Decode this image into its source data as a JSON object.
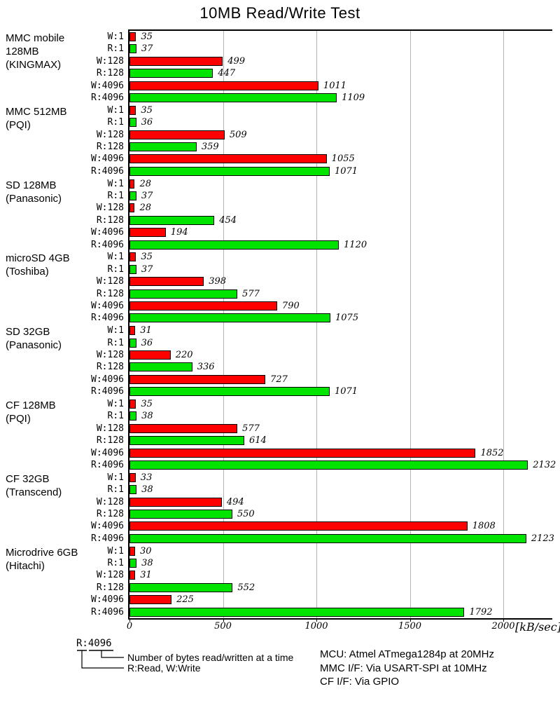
{
  "chart_data": {
    "type": "bar",
    "orientation": "horizontal",
    "title": "10MB Read/Write Test",
    "unit_label": "[kB/sec]",
    "x_ticks": [
      0,
      500,
      1000,
      1500,
      2000
    ],
    "xlim": [
      0,
      2262
    ],
    "grid": true,
    "bar_labels": [
      "W:1",
      "R:1",
      "W:128",
      "R:128",
      "W:4096",
      "R:4096"
    ],
    "colors": {
      "write_bar": "#ff0000",
      "read_bar": "#00e400",
      "bar_border": "#000000",
      "gridline": "#b3b3b3",
      "axis": "#000000"
    },
    "groups": [
      {
        "label_lines": [
          "MMC mobile",
          "128MB",
          "(KINGMAX)"
        ],
        "values": [
          35,
          37,
          499,
          447,
          1011,
          1109
        ]
      },
      {
        "label_lines": [
          "MMC 512MB",
          "(PQI)"
        ],
        "values": [
          35,
          36,
          509,
          359,
          1055,
          1071
        ]
      },
      {
        "label_lines": [
          "SD 128MB",
          "(Panasonic)"
        ],
        "values": [
          28,
          37,
          28,
          454,
          194,
          1120
        ]
      },
      {
        "label_lines": [
          "microSD 4GB",
          "(Toshiba)"
        ],
        "values": [
          35,
          37,
          398,
          577,
          790,
          1075
        ]
      },
      {
        "label_lines": [
          "SD 32GB",
          "(Panasonic)"
        ],
        "values": [
          31,
          36,
          220,
          336,
          727,
          1071
        ]
      },
      {
        "label_lines": [
          "CF 128MB",
          "(PQI)"
        ],
        "values": [
          35,
          38,
          577,
          614,
          1852,
          2132
        ]
      },
      {
        "label_lines": [
          "CF 32GB",
          "(Transcend)"
        ],
        "values": [
          33,
          38,
          494,
          550,
          1808,
          2123
        ]
      },
      {
        "label_lines": [
          "Microdrive 6GB",
          "(Hitachi)"
        ],
        "values": [
          30,
          38,
          31,
          552,
          225,
          1792
        ]
      }
    ],
    "legend": {
      "example": "R:4096",
      "bytes_note": "Number of bytes read/written at a time",
      "rw_note": "R:Read, W:Write"
    },
    "notes": [
      "MCU: Atmel ATmega1284p at 20MHz",
      "MMC I/F: Via USART-SPI at 10MHz",
      "CF I/F: Via GPIO"
    ]
  }
}
